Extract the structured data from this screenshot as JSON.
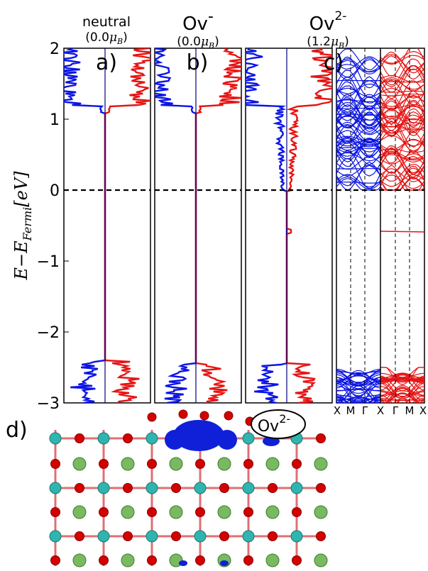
{
  "figure": {
    "panels": [
      {
        "letter": "a)",
        "title": "neutral",
        "moment": "(0.0",
        "moment_unit": "μ",
        "moment_sub": "B",
        "moment_close": ")"
      },
      {
        "letter": "b)",
        "title": "Ov",
        "title_sup": "-",
        "moment": "(0.0",
        "moment_unit": "μ",
        "moment_sub": "B",
        "moment_close": ")"
      },
      {
        "letter": "c)",
        "title": "Ov",
        "title_sup": "2-",
        "moment": "(1.2",
        "moment_unit": "μ",
        "moment_sub": "B",
        "moment_close": ")"
      }
    ],
    "ylabel": {
      "prefix": "E−E",
      "sub": "Fermi",
      "unit": "[eV]"
    },
    "band_ticks": [
      "X",
      "M",
      "Γ",
      "X",
      "Γ",
      "M",
      "X"
    ],
    "structure": {
      "letter": "d)",
      "label": "Ov",
      "label_sup": "2-"
    }
  },
  "colors": {
    "spin_up": "#0a14e6",
    "spin_down": "#e61414",
    "sum_line": "#000080",
    "ti_atom": "#2fb5b0",
    "o_atom": "#d40000",
    "sr_atom": "#79b962",
    "isosurface": "#1020d8"
  },
  "chart_data": {
    "type": "line",
    "y_range": [
      -3,
      2
    ],
    "y_ticks": [
      2,
      1,
      0,
      -1,
      -2,
      -3
    ],
    "fermi_level": 0,
    "panels": [
      {
        "name": "a) neutral",
        "kind": "dos",
        "series": [
          {
            "name": "",
            "valence_band_top": -2.4,
            "conduction_band_bottom": 1.1,
            "gap_states": []
          },
          {
            "name": "",
            "valence_band_top": -2.4,
            "conduction_band_bottom": 1.1,
            "gap_states": []
          }
        ]
      },
      {
        "name": "b) Ov-",
        "kind": "dos",
        "series": [
          {
            "name": "",
            "valence_band_top": -2.45,
            "conduction_band_bottom": 1.1,
            "gap_states": []
          },
          {
            "name": "",
            "valence_band_top": -2.45,
            "conduction_band_bottom": 1.1,
            "gap_states": []
          }
        ]
      },
      {
        "name": "c) Ov2-",
        "kind": "dos",
        "series": [
          {
            "name": "",
            "valence_band_top": -2.45,
            "conduction_band_bottom": 0.0,
            "gap_states": []
          },
          {
            "name": "",
            "valence_band_top": -2.45,
            "conduction_band_bottom": 0.0,
            "gap_states": [
              -0.58
            ]
          }
        ]
      },
      {
        "name": "c) band structure",
        "kind": "bands",
        "k_path": [
          "X",
          "M",
          "Γ",
          "X",
          "Γ",
          "M",
          "X"
        ],
        "series": [
          {
            "name": "",
            "valence_band_top": -2.5,
            "conduction_band_bottom": 0.0,
            "gap_states": []
          },
          {
            "name": "",
            "valence_band_top": -2.5,
            "conduction_band_bottom": 0.0,
            "gap_states": [
              -0.58
            ]
          }
        ]
      }
    ]
  }
}
